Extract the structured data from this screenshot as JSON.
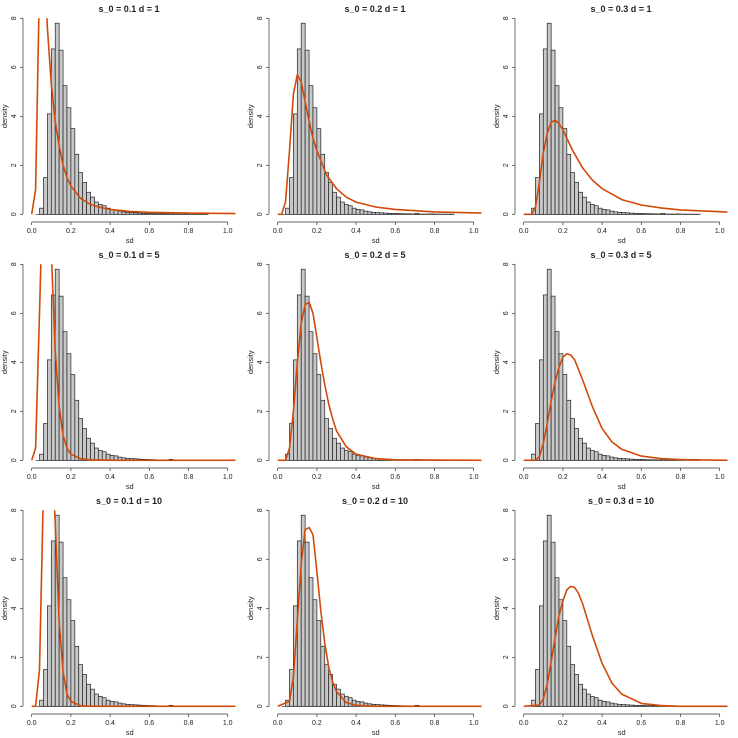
{
  "chart_data": {
    "type": "histogram-with-density-grid",
    "histogram_color": "#c8c8c8",
    "curve_color": "#d24a0a",
    "xlabel": "sd",
    "ylabel": "density",
    "xlim": [
      0,
      1.04
    ],
    "ylim": [
      0,
      8
    ],
    "xticks": [
      "0.0",
      "0.2",
      "0.4",
      "0.6",
      "0.8",
      "1.0"
    ],
    "yticks": [
      "0",
      "2",
      "4",
      "6",
      "8"
    ],
    "histogram": {
      "bin_width": 0.02,
      "bin_starts": [
        0.04,
        0.06,
        0.08,
        0.1,
        0.12,
        0.14,
        0.16,
        0.18,
        0.2,
        0.22,
        0.24,
        0.26,
        0.28,
        0.3,
        0.32,
        0.34,
        0.36,
        0.38,
        0.4,
        0.42,
        0.44,
        0.46,
        0.48,
        0.5,
        0.52,
        0.54,
        0.56,
        0.58,
        0.6,
        0.62,
        0.64,
        0.66,
        0.68,
        0.7,
        0.72,
        0.74,
        0.76,
        0.78,
        0.8,
        0.82,
        0.84,
        0.86,
        0.88
      ],
      "densities": [
        0.25,
        1.5,
        4.1,
        6.75,
        7.8,
        6.7,
        5.25,
        4.35,
        3.5,
        2.45,
        1.7,
        1.3,
        0.9,
        0.7,
        0.5,
        0.4,
        0.35,
        0.25,
        0.2,
        0.18,
        0.13,
        0.1,
        0.08,
        0.07,
        0.06,
        0.05,
        0.04,
        0.035,
        0.03,
        0.025,
        0.02,
        0.02,
        0.015,
        0.04,
        0.01,
        0.01,
        0.01,
        0.015,
        0.008,
        0.008,
        0.006,
        0.006,
        0.005
      ]
    },
    "panels": [
      {
        "title": "s_0 = 0.1 d = 1",
        "x": [
          0,
          0.02,
          0.04,
          0.06,
          0.08,
          0.1,
          0.12,
          0.14,
          0.16,
          0.18,
          0.2,
          0.25,
          0.3,
          0.35,
          0.4,
          0.5,
          0.6,
          0.8,
          1.04
        ],
        "y": [
          0,
          1.0,
          9.5,
          11,
          7.6,
          5.3,
          3.8,
          2.8,
          2.0,
          1.5,
          1.15,
          0.65,
          0.4,
          0.28,
          0.2,
          0.12,
          0.08,
          0.05,
          0.03
        ]
      },
      {
        "title": "s_0 = 0.2 d = 1",
        "x": [
          0,
          0.02,
          0.04,
          0.06,
          0.08,
          0.1,
          0.12,
          0.14,
          0.16,
          0.18,
          0.2,
          0.25,
          0.3,
          0.35,
          0.4,
          0.5,
          0.6,
          0.8,
          1.04
        ],
        "y": [
          0,
          0,
          0.5,
          2.6,
          4.9,
          5.7,
          5.4,
          4.6,
          3.8,
          3.1,
          2.6,
          1.6,
          1.05,
          0.7,
          0.5,
          0.3,
          0.2,
          0.1,
          0.05
        ]
      },
      {
        "title": "s_0 = 0.3 d = 1",
        "x": [
          0,
          0.04,
          0.06,
          0.08,
          0.1,
          0.12,
          0.14,
          0.16,
          0.18,
          0.2,
          0.25,
          0.3,
          0.35,
          0.4,
          0.5,
          0.6,
          0.7,
          0.8,
          1.04
        ],
        "y": [
          0,
          0,
          0.3,
          1.3,
          2.5,
          3.3,
          3.75,
          3.85,
          3.7,
          3.45,
          2.6,
          1.9,
          1.4,
          1.05,
          0.6,
          0.38,
          0.26,
          0.18,
          0.09
        ]
      },
      {
        "title": "s_0 = 0.1 d = 5",
        "x": [
          0,
          0.02,
          0.04,
          0.06,
          0.08,
          0.1,
          0.12,
          0.14,
          0.16,
          0.18,
          0.2,
          0.25,
          0.3,
          0.4,
          1.04
        ],
        "y": [
          0,
          0.5,
          6,
          12,
          12,
          8.5,
          4.5,
          2.2,
          1.0,
          0.5,
          0.25,
          0.06,
          0.02,
          0,
          0
        ]
      },
      {
        "title": "s_0 = 0.2 d = 5",
        "x": [
          0,
          0.04,
          0.06,
          0.08,
          0.1,
          0.12,
          0.14,
          0.16,
          0.18,
          0.2,
          0.22,
          0.24,
          0.26,
          0.28,
          0.3,
          0.35,
          0.4,
          0.5,
          0.6,
          1.04
        ],
        "y": [
          0,
          0,
          0.5,
          2.0,
          4.0,
          5.6,
          6.35,
          6.45,
          6.0,
          5.0,
          4.0,
          3.1,
          2.3,
          1.7,
          1.2,
          0.55,
          0.25,
          0.07,
          0.02,
          0
        ]
      },
      {
        "title": "s_0 = 0.3 d = 5",
        "x": [
          0,
          0.06,
          0.08,
          0.1,
          0.12,
          0.14,
          0.16,
          0.18,
          0.2,
          0.22,
          0.24,
          0.26,
          0.28,
          0.3,
          0.35,
          0.4,
          0.45,
          0.5,
          0.6,
          0.7,
          0.8,
          1.04
        ],
        "y": [
          0,
          0,
          0.15,
          0.7,
          1.5,
          2.4,
          3.2,
          3.8,
          4.2,
          4.35,
          4.3,
          4.1,
          3.7,
          3.3,
          2.2,
          1.3,
          0.75,
          0.45,
          0.17,
          0.07,
          0.03,
          0
        ]
      },
      {
        "title": "s_0 = 0.1 d = 10",
        "x": [
          0,
          0.02,
          0.04,
          0.06,
          0.08,
          0.1,
          0.12,
          0.14,
          0.16,
          0.18,
          0.2,
          0.25,
          0.3,
          1.04
        ],
        "y": [
          0,
          0,
          1.5,
          9,
          14,
          11,
          7.5,
          3.5,
          1.4,
          0.5,
          0.2,
          0.02,
          0,
          0
        ]
      },
      {
        "title": "s_0 = 0.2 d = 10",
        "x": [
          0,
          0.06,
          0.08,
          0.1,
          0.12,
          0.14,
          0.16,
          0.18,
          0.2,
          0.22,
          0.24,
          0.26,
          0.28,
          0.3,
          0.35,
          0.4,
          0.5,
          1.04
        ],
        "y": [
          0,
          0.2,
          1.2,
          3.5,
          5.8,
          7.2,
          7.3,
          7.0,
          5.5,
          3.9,
          2.6,
          1.6,
          1.0,
          0.6,
          0.15,
          0.04,
          0,
          0
        ]
      },
      {
        "title": "s_0 = 0.3 d = 10",
        "x": [
          0,
          0.08,
          0.1,
          0.12,
          0.14,
          0.16,
          0.18,
          0.2,
          0.22,
          0.24,
          0.26,
          0.28,
          0.3,
          0.35,
          0.4,
          0.45,
          0.5,
          0.6,
          0.7,
          0.8,
          1.04
        ],
        "y": [
          0,
          0.05,
          0.3,
          0.9,
          1.8,
          2.8,
          3.7,
          4.3,
          4.75,
          4.9,
          4.85,
          4.6,
          4.2,
          2.9,
          1.75,
          0.95,
          0.5,
          0.12,
          0.03,
          0,
          0
        ]
      }
    ]
  }
}
